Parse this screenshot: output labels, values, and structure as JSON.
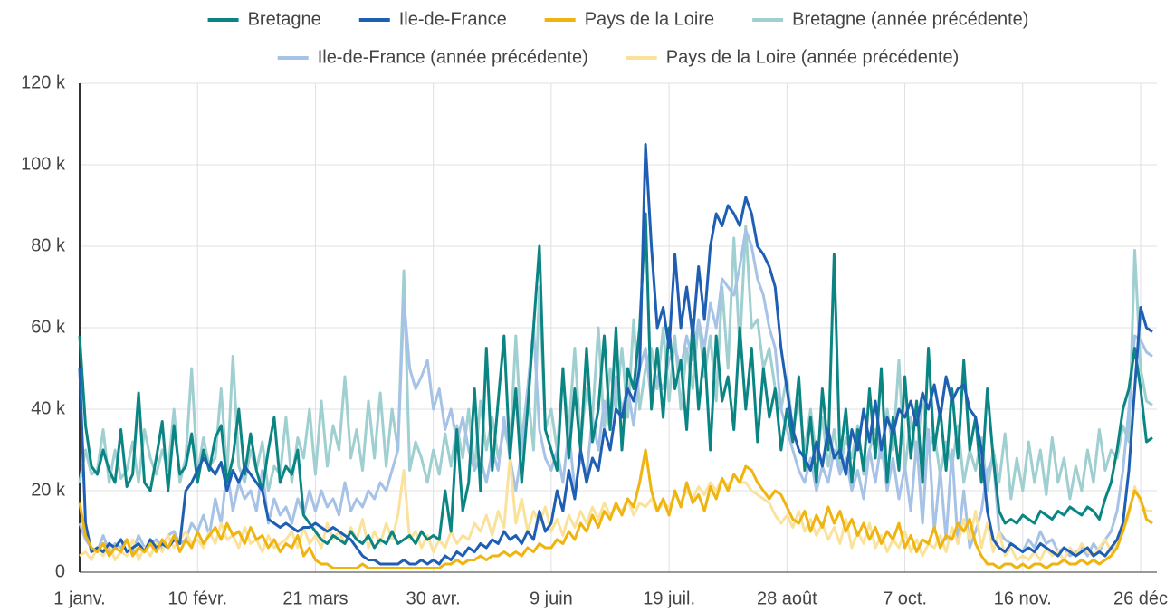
{
  "chart_data": {
    "type": "line",
    "legend": "top",
    "grid": true,
    "categories": [
      "1 janv.",
      null,
      null,
      null,
      null,
      null,
      null,
      null,
      null,
      null,
      null,
      null,
      null,
      null,
      null,
      null,
      null,
      null,
      null,
      null,
      "10 févr.",
      null,
      null,
      null,
      null,
      null,
      null,
      null,
      null,
      null,
      null,
      null,
      null,
      null,
      null,
      null,
      null,
      null,
      null,
      null,
      "21 mars",
      null,
      null,
      null,
      null,
      null,
      null,
      null,
      null,
      null,
      null,
      null,
      null,
      null,
      null,
      null,
      null,
      null,
      null,
      null,
      "30 avr.",
      null,
      null,
      null,
      null,
      null,
      null,
      null,
      null,
      null,
      null,
      null,
      null,
      null,
      null,
      null,
      null,
      null,
      null,
      null,
      "9 juin",
      null,
      null,
      null,
      null,
      null,
      null,
      null,
      null,
      null,
      null,
      null,
      null,
      null,
      null,
      null,
      null,
      null,
      null,
      null,
      "19 juil.",
      null,
      null,
      null,
      null,
      null,
      null,
      null,
      null,
      null,
      null,
      null,
      null,
      null,
      null,
      null,
      null,
      null,
      null,
      null,
      "28 août",
      null,
      null,
      null,
      null,
      null,
      null,
      null,
      null,
      null,
      null,
      null,
      null,
      null,
      null,
      null,
      null,
      null,
      null,
      null,
      "7 oct.",
      null,
      null,
      null,
      null,
      null,
      null,
      null,
      null,
      null,
      null,
      null,
      null,
      null,
      null,
      null,
      null,
      null,
      null,
      null,
      "16 nov.",
      null,
      null,
      null,
      null,
      null,
      null,
      null,
      null,
      null,
      null,
      null,
      null,
      null,
      null,
      null,
      null,
      null,
      null,
      null,
      "26 déc",
      null,
      null
    ],
    "ylim": [
      0,
      120
    ],
    "yticks": [
      {
        "value": 0,
        "label": "0"
      },
      {
        "value": 20,
        "label": "20 k"
      },
      {
        "value": 40,
        "label": "40 k"
      },
      {
        "value": 60,
        "label": "60 k"
      },
      {
        "value": 80,
        "label": "80 k"
      },
      {
        "value": 100,
        "label": "100 k"
      },
      {
        "value": 120,
        "label": "120 k"
      }
    ],
    "series": [
      {
        "name": "Bretagne (année précédente)",
        "color": "#9fcfd0",
        "values": [
          22,
          30,
          24,
          25,
          35,
          22,
          30,
          23,
          25,
          32,
          22,
          35,
          28,
          24,
          30,
          25,
          40,
          22,
          28,
          50,
          24,
          33,
          26,
          28,
          45,
          24,
          53,
          26,
          22,
          30,
          25,
          32,
          20,
          26,
          24,
          38,
          22,
          33,
          28,
          40,
          24,
          42,
          26,
          36,
          30,
          48,
          28,
          35,
          25,
          42,
          28,
          44,
          26,
          40,
          30,
          74,
          25,
          32,
          28,
          22,
          30,
          24,
          34,
          26,
          36,
          28,
          40,
          25,
          42,
          30,
          38,
          28,
          35,
          30,
          58,
          32,
          45,
          30,
          70,
          35,
          40,
          30,
          48,
          35,
          55,
          32,
          45,
          38,
          60,
          35,
          50,
          40,
          55,
          38,
          62,
          40,
          50,
          55,
          45,
          60,
          42,
          58,
          40,
          55,
          45,
          62,
          48,
          58,
          42,
          70,
          50,
          82,
          55,
          85,
          60,
          62,
          50,
          55,
          45,
          40,
          48,
          35,
          42,
          30,
          40,
          28,
          38,
          26,
          35,
          25,
          33,
          28,
          36,
          24,
          30,
          35,
          28,
          40,
          30,
          52,
          25,
          38,
          28,
          44,
          30,
          34,
          24,
          32,
          26,
          36,
          22,
          30,
          25,
          33,
          20,
          30,
          22,
          34,
          18,
          28,
          20,
          32,
          22,
          30,
          19,
          33,
          22,
          28,
          18,
          26,
          20,
          30,
          22,
          35,
          25,
          30,
          28,
          36,
          32,
          79,
          50,
          42,
          41
        ]
      },
      {
        "name": "Ile-de-France (année précédente)",
        "color": "#a6c2e6",
        "values": [
          12,
          8,
          6,
          5,
          9,
          5,
          7,
          6,
          8,
          5,
          9,
          6,
          7,
          8,
          6,
          9,
          10,
          7,
          8,
          12,
          10,
          14,
          9,
          18,
          12,
          25,
          15,
          22,
          18,
          20,
          15,
          25,
          12,
          18,
          14,
          16,
          12,
          18,
          14,
          20,
          15,
          20,
          16,
          18,
          14,
          22,
          15,
          18,
          16,
          20,
          18,
          22,
          20,
          25,
          30,
          67,
          50,
          45,
          48,
          52,
          40,
          45,
          35,
          40,
          32,
          38,
          30,
          25,
          28,
          22,
          30,
          25,
          38,
          28,
          20,
          30,
          45,
          60,
          35,
          28,
          25,
          30,
          22,
          35,
          20,
          28,
          24,
          38,
          30,
          42,
          35,
          48,
          40,
          45,
          36,
          50,
          55,
          42,
          48,
          45,
          52,
          55,
          50,
          58,
          52,
          62,
          55,
          66,
          60,
          72,
          70,
          68,
          75,
          84,
          80,
          72,
          68,
          60,
          55,
          40,
          35,
          30,
          25,
          22,
          28,
          20,
          26,
          22,
          30,
          24,
          28,
          20,
          25,
          18,
          30,
          22,
          32,
          20,
          28,
          18,
          26,
          15,
          32,
          12,
          35,
          10,
          25,
          8,
          30,
          7,
          20,
          6,
          10,
          15,
          25,
          28,
          10,
          8,
          7,
          6,
          5,
          8,
          6,
          10,
          7,
          8,
          5,
          6,
          4,
          5,
          6,
          4,
          7,
          5,
          8,
          10,
          15,
          25,
          40,
          58,
          57,
          54,
          53
        ]
      },
      {
        "name": "Pays de la Loire (année précédente)",
        "color": "#fbe29c",
        "values": [
          4,
          5,
          3,
          6,
          4,
          7,
          3,
          5,
          4,
          8,
          3,
          6,
          4,
          7,
          5,
          9,
          6,
          8,
          10,
          7,
          8,
          6,
          10,
          7,
          12,
          8,
          9,
          6,
          11,
          7,
          8,
          5,
          9,
          6,
          7,
          8,
          10,
          6,
          11,
          7,
          9,
          6,
          12,
          8,
          10,
          7,
          11,
          8,
          13,
          6,
          10,
          7,
          12,
          8,
          14,
          25,
          8,
          10,
          6,
          9,
          5,
          8,
          6,
          10,
          7,
          9,
          8,
          12,
          10,
          14,
          9,
          15,
          11,
          28,
          12,
          18,
          10,
          15,
          12,
          16,
          10,
          13,
          9,
          14,
          11,
          15,
          12,
          16,
          13,
          17,
          14,
          16,
          15,
          18,
          14,
          17,
          16,
          18,
          15,
          17,
          16,
          19,
          17,
          20,
          18,
          21,
          19,
          22,
          20,
          23,
          21,
          24,
          22,
          22,
          20,
          19,
          18,
          17,
          14,
          12,
          14,
          11,
          15,
          10,
          13,
          9,
          12,
          8,
          11,
          7,
          13,
          6,
          10,
          7,
          12,
          6,
          9,
          5,
          8,
          6,
          10,
          5,
          8,
          4,
          7,
          6,
          9,
          5,
          11,
          7,
          13,
          8,
          15,
          6,
          12,
          5,
          10,
          4,
          6,
          3,
          4,
          3,
          5,
          3,
          6,
          4,
          5,
          3,
          6,
          4,
          7,
          5,
          4,
          6,
          8,
          5,
          7,
          10,
          14,
          21,
          17,
          15,
          15
        ]
      },
      {
        "name": "Bretagne",
        "color": "#0b8584",
        "values": [
          58,
          36,
          26,
          24,
          30,
          25,
          22,
          35,
          21,
          24,
          44,
          22,
          20,
          28,
          37,
          20,
          36,
          24,
          26,
          34,
          22,
          30,
          25,
          33,
          36,
          22,
          28,
          40,
          24,
          34,
          25,
          20,
          30,
          38,
          22,
          26,
          24,
          30,
          14,
          12,
          10,
          8,
          7,
          9,
          8,
          7,
          10,
          8,
          7,
          9,
          6,
          8,
          7,
          10,
          7,
          8,
          9,
          7,
          10,
          8,
          9,
          8,
          20,
          10,
          35,
          15,
          22,
          45,
          20,
          55,
          25,
          42,
          58,
          28,
          45,
          22,
          40,
          60,
          80,
          35,
          30,
          25,
          50,
          28,
          45,
          30,
          55,
          32,
          40,
          58,
          35,
          60,
          30,
          50,
          45,
          60,
          88,
          40,
          55,
          38,
          60,
          45,
          52,
          35,
          62,
          40,
          55,
          30,
          58,
          42,
          48,
          35,
          60,
          40,
          55,
          32,
          50,
          38,
          45,
          30,
          40,
          32,
          48,
          25,
          38,
          22,
          45,
          30,
          78,
          28,
          40,
          22,
          35,
          25,
          45,
          28,
          50,
          22,
          38,
          25,
          48,
          28,
          42,
          22,
          55,
          30,
          40,
          25,
          45,
          28,
          52,
          30,
          38,
          22,
          45,
          28,
          15,
          12,
          13,
          12,
          14,
          13,
          12,
          15,
          14,
          13,
          15,
          14,
          16,
          15,
          14,
          16,
          15,
          13,
          18,
          22,
          30,
          40,
          45,
          55,
          45,
          32,
          33
        ]
      },
      {
        "name": "Ile-de-France",
        "color": "#1f5fb3",
        "values": [
          50,
          12,
          5,
          6,
          5,
          7,
          6,
          8,
          5,
          6,
          7,
          5,
          8,
          6,
          7,
          6,
          8,
          7,
          20,
          22,
          25,
          28,
          26,
          24,
          27,
          20,
          25,
          22,
          26,
          24,
          22,
          20,
          13,
          12,
          11,
          12,
          11,
          10,
          11,
          11,
          12,
          11,
          10,
          11,
          10,
          9,
          8,
          6,
          4,
          3,
          3,
          2,
          2,
          2,
          2,
          3,
          2,
          2,
          3,
          2,
          3,
          2,
          4,
          3,
          5,
          4,
          6,
          5,
          7,
          6,
          8,
          7,
          10,
          8,
          9,
          7,
          10,
          8,
          15,
          10,
          12,
          20,
          15,
          25,
          18,
          30,
          22,
          28,
          25,
          35,
          30,
          40,
          38,
          45,
          42,
          50,
          105,
          80,
          60,
          65,
          55,
          78,
          60,
          70,
          58,
          75,
          62,
          80,
          88,
          85,
          90,
          88,
          85,
          92,
          88,
          80,
          78,
          75,
          70,
          55,
          45,
          35,
          30,
          28,
          25,
          32,
          26,
          35,
          28,
          30,
          24,
          35,
          30,
          40,
          32,
          42,
          30,
          38,
          34,
          40,
          38,
          42,
          36,
          44,
          40,
          46,
          38,
          48,
          42,
          45,
          46,
          40,
          38,
          30,
          15,
          8,
          6,
          5,
          7,
          6,
          5,
          6,
          5,
          7,
          6,
          5,
          4,
          6,
          5,
          4,
          5,
          6,
          4,
          5,
          4,
          6,
          8,
          12,
          25,
          45,
          65,
          60,
          59
        ]
      },
      {
        "name": "Pays de la Loire",
        "color": "#efb40f",
        "values": [
          17,
          9,
          6,
          5,
          7,
          4,
          6,
          5,
          8,
          4,
          6,
          5,
          7,
          5,
          8,
          6,
          9,
          5,
          8,
          6,
          10,
          7,
          9,
          11,
          8,
          12,
          9,
          10,
          7,
          11,
          8,
          9,
          6,
          8,
          5,
          7,
          6,
          9,
          4,
          6,
          3,
          2,
          2,
          1,
          1,
          1,
          1,
          1,
          2,
          1,
          1,
          1,
          1,
          1,
          1,
          1,
          1,
          1,
          1,
          1,
          1,
          1,
          2,
          2,
          3,
          2,
          3,
          3,
          4,
          3,
          4,
          4,
          5,
          4,
          5,
          4,
          6,
          5,
          7,
          6,
          6,
          8,
          7,
          10,
          8,
          12,
          10,
          14,
          11,
          15,
          13,
          17,
          14,
          18,
          16,
          22,
          30,
          20,
          15,
          18,
          14,
          20,
          16,
          22,
          17,
          19,
          15,
          21,
          18,
          23,
          20,
          24,
          22,
          26,
          25,
          22,
          20,
          18,
          20,
          19,
          16,
          13,
          12,
          15,
          10,
          14,
          11,
          16,
          12,
          15,
          10,
          13,
          9,
          12,
          8,
          11,
          7,
          10,
          8,
          12,
          6,
          9,
          5,
          8,
          7,
          11,
          6,
          9,
          8,
          12,
          10,
          13,
          7,
          4,
          2,
          2,
          1,
          2,
          2,
          1,
          2,
          1,
          2,
          2,
          1,
          2,
          2,
          3,
          2,
          2,
          3,
          2,
          3,
          2,
          3,
          4,
          6,
          10,
          15,
          20,
          18,
          13,
          12
        ]
      }
    ],
    "legend_order": [
      3,
      4,
      5,
      0,
      1,
      2
    ]
  }
}
